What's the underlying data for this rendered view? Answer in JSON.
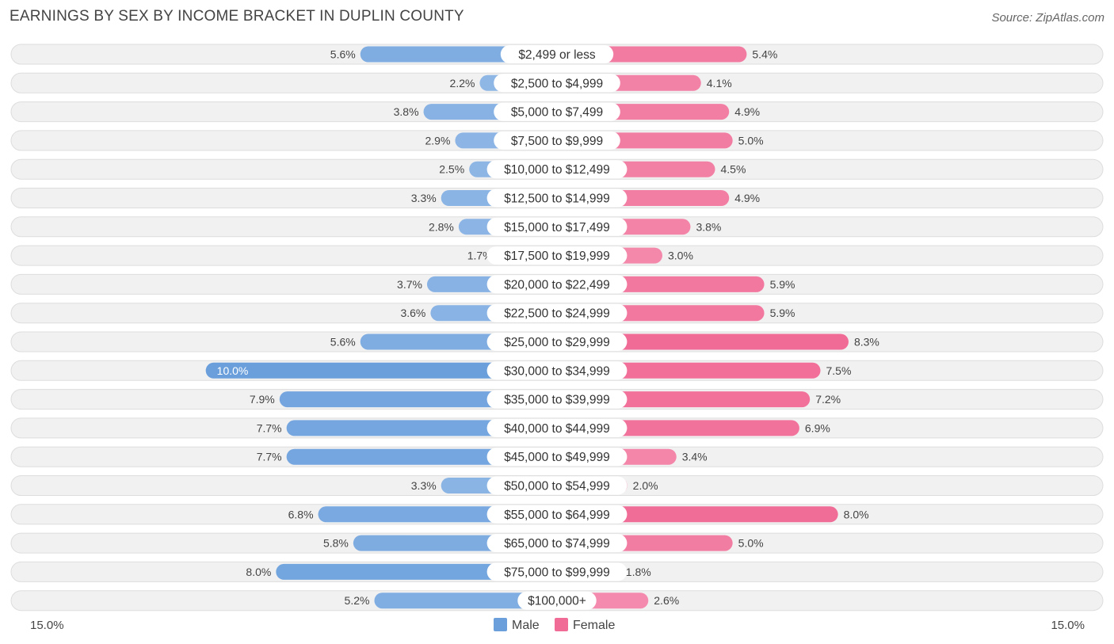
{
  "title": "EARNINGS BY SEX BY INCOME BRACKET IN DUPLIN COUNTY",
  "source": "Source: ZipAtlas.com",
  "colors": {
    "male": "#6a9fdc",
    "female": "#f06b96",
    "male_light": "#a9c8ec",
    "female_light": "#f7a8c2"
  },
  "chart_data": {
    "type": "bar",
    "orientation": "horizontal-diverging",
    "title": "EARNINGS BY SEX BY INCOME BRACKET IN DUPLIN COUNTY",
    "categories": [
      "$2,499 or less",
      "$2,500 to $4,999",
      "$5,000 to $7,499",
      "$7,500 to $9,999",
      "$10,000 to $12,499",
      "$12,500 to $14,999",
      "$15,000 to $17,499",
      "$17,500 to $19,999",
      "$20,000 to $22,499",
      "$22,500 to $24,999",
      "$25,000 to $29,999",
      "$30,000 to $34,999",
      "$35,000 to $39,999",
      "$40,000 to $44,999",
      "$45,000 to $49,999",
      "$50,000 to $54,999",
      "$55,000 to $64,999",
      "$65,000 to $74,999",
      "$75,000 to $99,999",
      "$100,000+"
    ],
    "series": [
      {
        "name": "Male",
        "values": [
          5.6,
          2.2,
          3.8,
          2.9,
          2.5,
          3.3,
          2.8,
          1.7,
          3.7,
          3.6,
          5.6,
          10.0,
          7.9,
          7.7,
          7.7,
          3.3,
          6.8,
          5.8,
          8.0,
          5.2
        ],
        "labels": [
          "5.6%",
          "2.2%",
          "3.8%",
          "2.9%",
          "2.5%",
          "3.3%",
          "2.8%",
          "1.7%",
          "3.7%",
          "3.6%",
          "5.6%",
          "10.0%",
          "7.9%",
          "7.7%",
          "7.7%",
          "3.3%",
          "6.8%",
          "5.8%",
          "8.0%",
          "5.2%"
        ]
      },
      {
        "name": "Female",
        "values": [
          5.4,
          4.1,
          4.9,
          5.0,
          4.5,
          4.9,
          3.8,
          3.0,
          5.9,
          5.9,
          8.3,
          7.5,
          7.2,
          6.9,
          3.4,
          2.0,
          8.0,
          5.0,
          1.8,
          2.6
        ],
        "labels": [
          "5.4%",
          "4.1%",
          "4.9%",
          "5.0%",
          "4.5%",
          "4.9%",
          "3.8%",
          "3.0%",
          "5.9%",
          "5.9%",
          "8.3%",
          "7.5%",
          "7.2%",
          "6.9%",
          "3.4%",
          "2.0%",
          "8.0%",
          "5.0%",
          "1.8%",
          "2.6%"
        ]
      }
    ],
    "xlim": [
      -15.0,
      15.0
    ],
    "axis_labels": {
      "left": "15.0%",
      "right": "15.0%"
    },
    "legend": {
      "position": "bottom-center",
      "entries": [
        "Male",
        "Female"
      ]
    }
  }
}
